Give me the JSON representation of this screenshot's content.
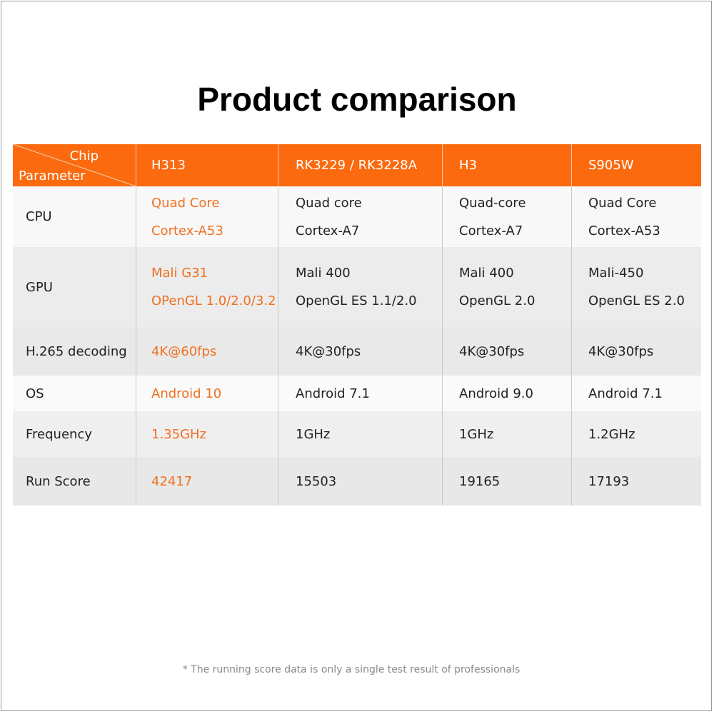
{
  "title": "Product comparison",
  "table": {
    "corner": {
      "top": "Chip",
      "bottom": "Parameter"
    },
    "columns": [
      "H313",
      "RK3229 / RK3228A",
      "H3",
      "S905W"
    ],
    "highlight_color": "#f07020",
    "header_color": "#fb6a0f",
    "rows": [
      {
        "label": "CPU",
        "cells": [
          [
            "Quad Core",
            "Cortex-A53"
          ],
          [
            "Quad core",
            "Cortex-A7"
          ],
          [
            "Quad-core",
            "Cortex-A7"
          ],
          [
            "Quad Core",
            "Cortex-A53"
          ]
        ]
      },
      {
        "label": "GPU",
        "cells": [
          [
            "Mali G31",
            "OPenGL 1.0/2.0/3.2"
          ],
          [
            "Mali 400",
            "OpenGL ES 1.1/2.0"
          ],
          [
            "Mali 400",
            "OpenGL 2.0"
          ],
          [
            "Mali-450",
            "OpenGL ES 2.0"
          ]
        ]
      },
      {
        "label": "H.265 decoding",
        "cells": [
          [
            "4K@60fps"
          ],
          [
            "4K@30fps"
          ],
          [
            "4K@30fps"
          ],
          [
            "4K@30fps"
          ]
        ]
      },
      {
        "label": "OS",
        "cells": [
          [
            "Android 10"
          ],
          [
            "Android 7.1"
          ],
          [
            "Android 9.0"
          ],
          [
            "Android 7.1"
          ]
        ]
      },
      {
        "label": "Frequency",
        "cells": [
          [
            "1.35GHz"
          ],
          [
            "1GHz"
          ],
          [
            "1GHz"
          ],
          [
            "1.2GHz"
          ]
        ]
      },
      {
        "label": "Run Score",
        "cells": [
          [
            "42417"
          ],
          [
            "15503"
          ],
          [
            "19165"
          ],
          [
            "17193"
          ]
        ]
      }
    ]
  },
  "footnote": "* The running score data is only a single test result of professionals"
}
